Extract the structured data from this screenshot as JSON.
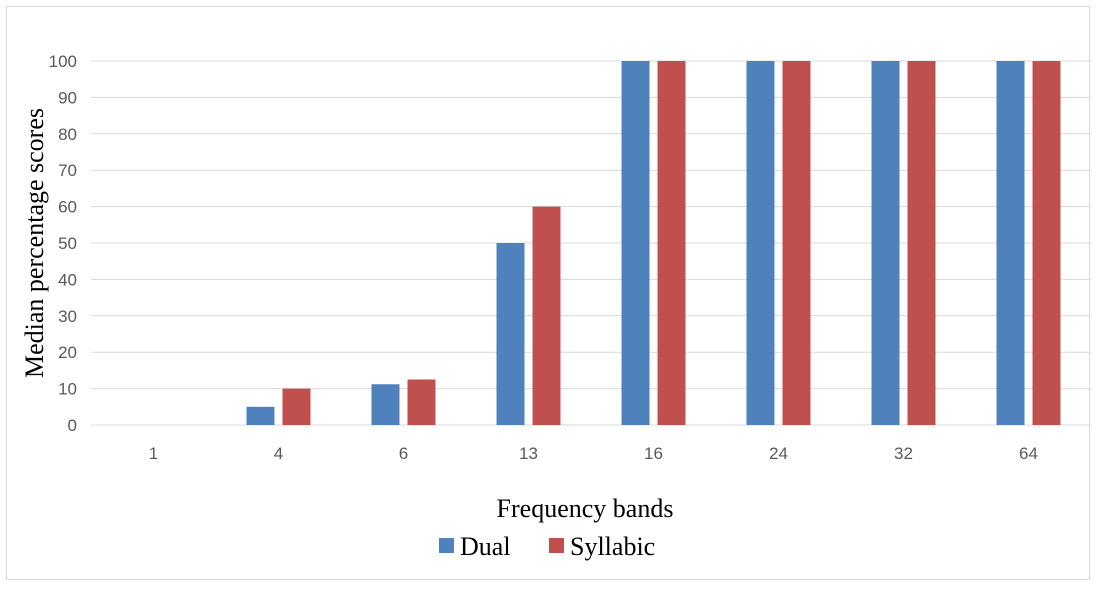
{
  "chart_data": {
    "type": "bar",
    "categories": [
      "1",
      "4",
      "6",
      "13",
      "16",
      "24",
      "32",
      "64"
    ],
    "series": [
      {
        "name": "Dual",
        "values": [
          0,
          5,
          11.2,
          50,
          100,
          100,
          100,
          100
        ],
        "color": "#4f81bd"
      },
      {
        "name": "Syllabic",
        "values": [
          0,
          10,
          12.5,
          60,
          100,
          100,
          100,
          100
        ],
        "color": "#c0504d"
      }
    ],
    "title": "",
    "xlabel": "Frequency bands",
    "ylabel": "Median percentage scores",
    "ylim": [
      0,
      100
    ],
    "yticks": [
      0,
      10,
      20,
      30,
      40,
      50,
      60,
      70,
      80,
      90,
      100
    ],
    "grid": true,
    "legend_position": "bottom"
  }
}
